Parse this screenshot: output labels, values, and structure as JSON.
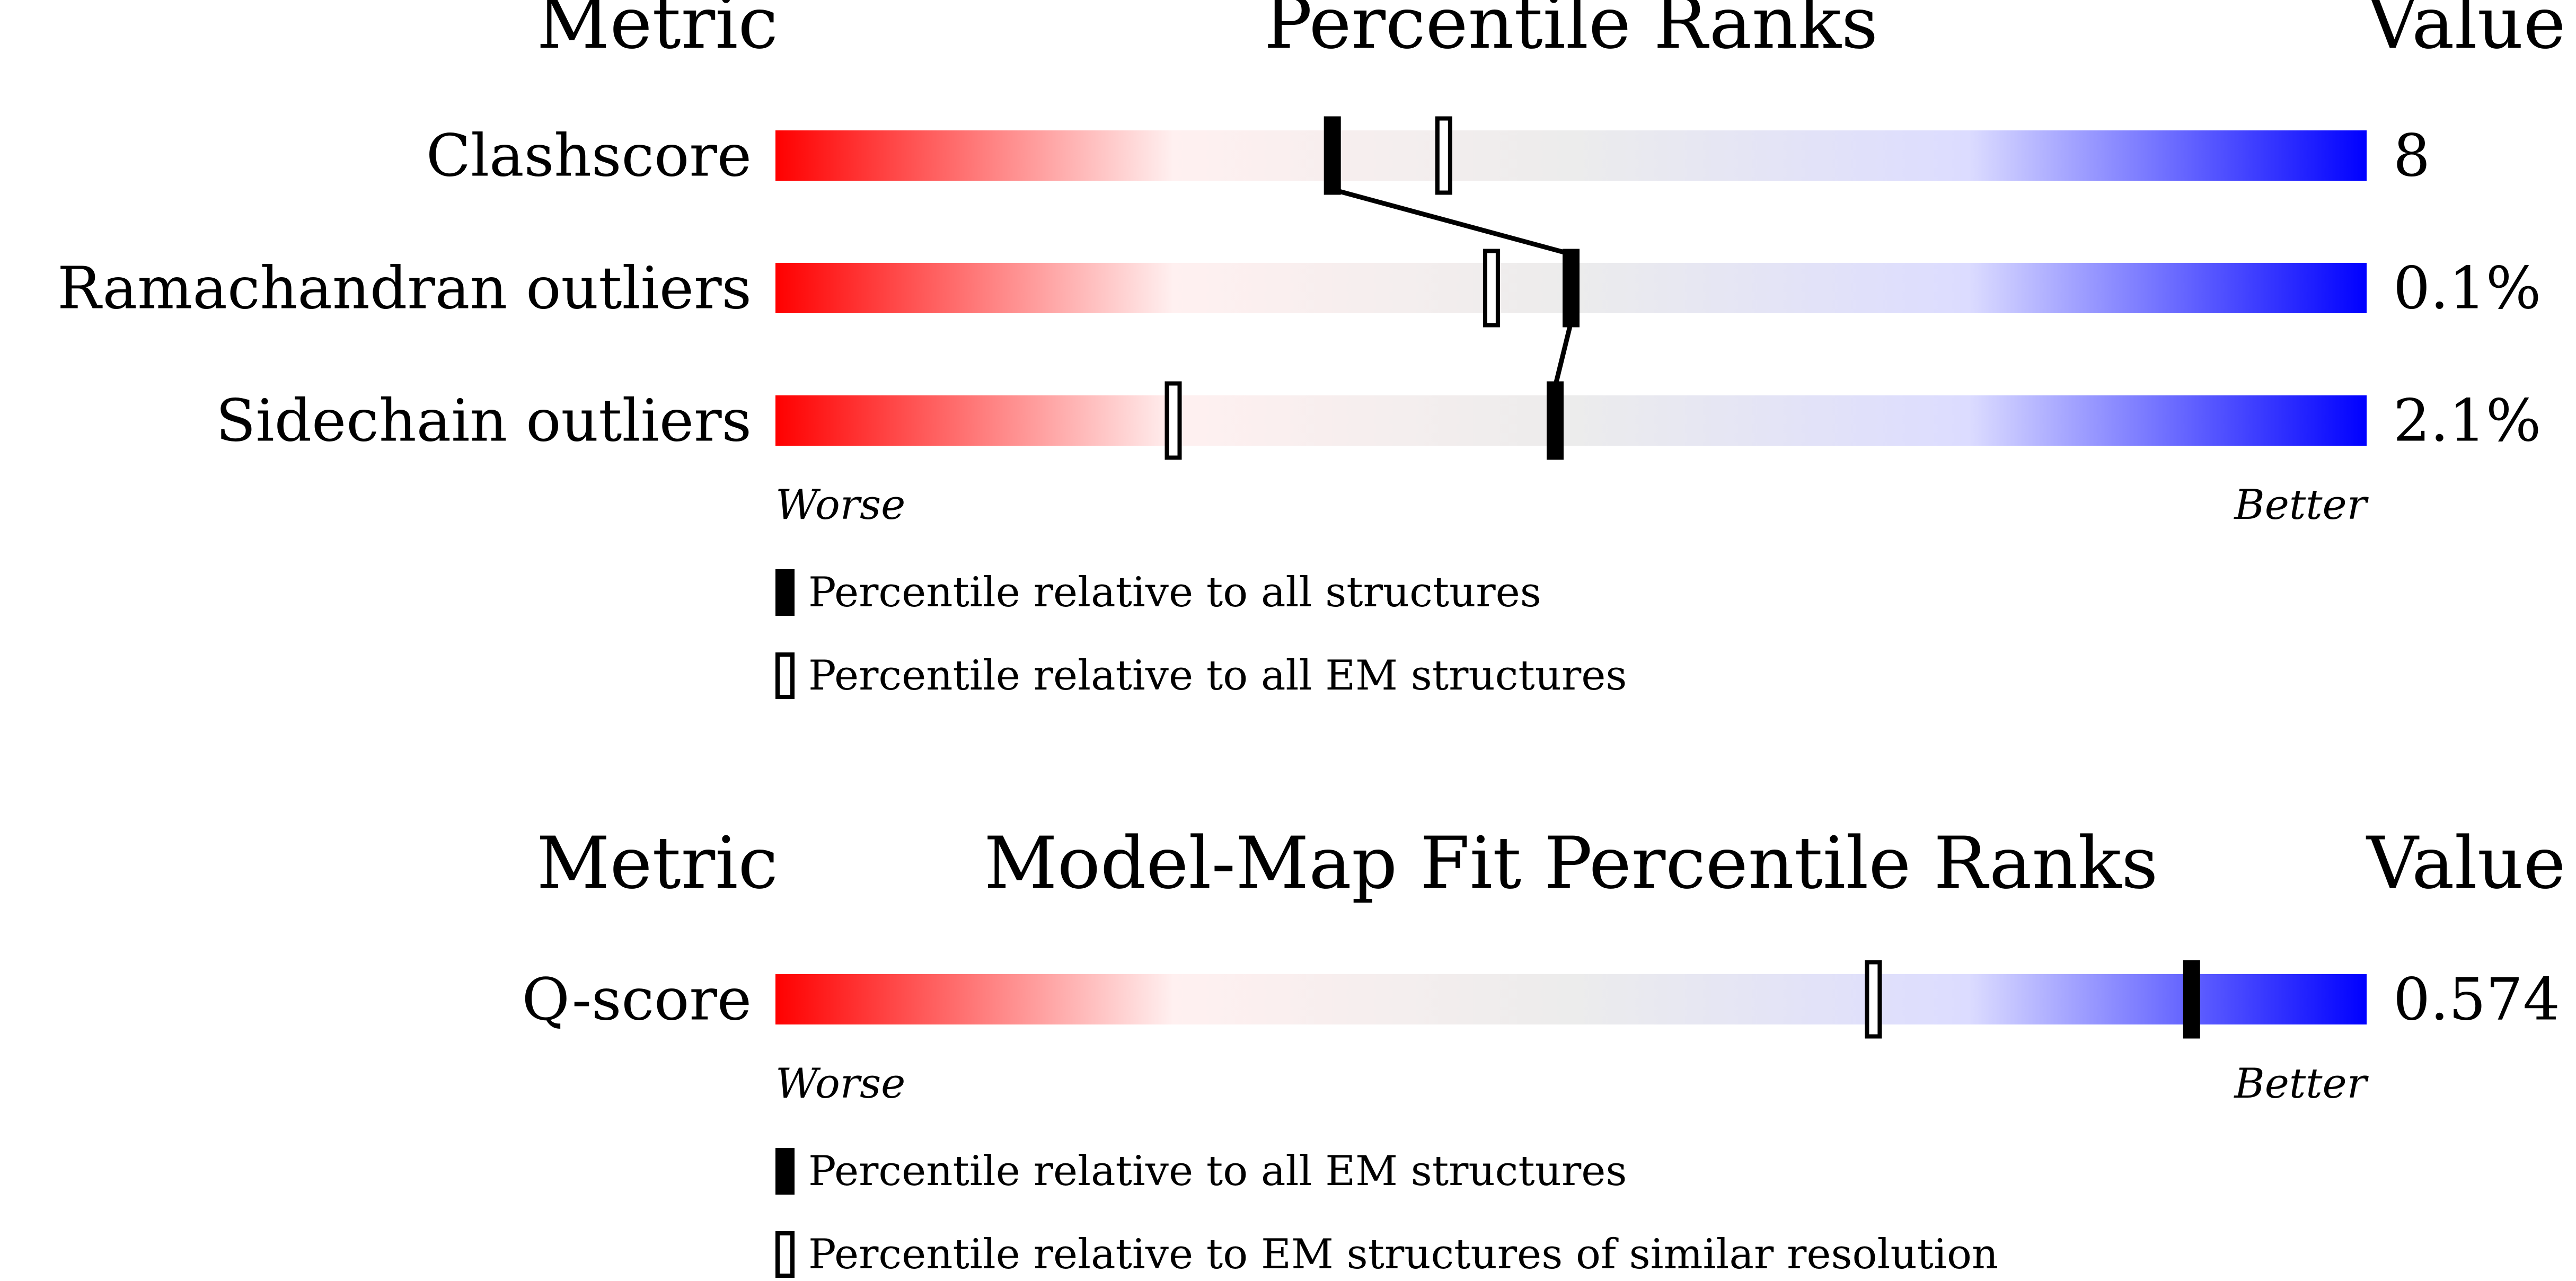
{
  "chart_data": [
    {
      "type": "percentile-bar",
      "header": {
        "metric": "Metric",
        "title": "Percentile Ranks",
        "value": "Value"
      },
      "scale": {
        "min": 0,
        "max": 100,
        "worse_label": "Worse",
        "better_label": "Better"
      },
      "gradient_colors": [
        "#ff0000",
        "#fff0f0",
        "#ececec",
        "#dcdcff",
        "#0000ff"
      ],
      "metrics": [
        {
          "name": "Clashscore",
          "value": "8",
          "percentile_all": 35,
          "percentile_em": 42
        },
        {
          "name": "Ramachandran outliers",
          "value": "0.1%",
          "percentile_all": 50,
          "percentile_em": 45
        },
        {
          "name": "Sidechain outliers",
          "value": "2.1%",
          "percentile_all": 49,
          "percentile_em": 25
        }
      ],
      "legend": [
        {
          "marker": "filled",
          "text": "Percentile relative to all structures"
        },
        {
          "marker": "open",
          "text": "Percentile relative to all EM structures"
        }
      ],
      "connect_filled_markers": true
    },
    {
      "type": "percentile-bar",
      "header": {
        "metric": "Metric",
        "title": "Model-Map Fit Percentile Ranks",
        "value": "Value"
      },
      "scale": {
        "min": 0,
        "max": 100,
        "worse_label": "Worse",
        "better_label": "Better"
      },
      "gradient_colors": [
        "#ff0000",
        "#fff0f0",
        "#ececec",
        "#dcdcff",
        "#0000ff"
      ],
      "metrics": [
        {
          "name": "Q-score",
          "value": "0.574",
          "percentile_all": 89,
          "percentile_em": 69
        }
      ],
      "legend": [
        {
          "marker": "filled",
          "text": "Percentile relative to all EM structures"
        },
        {
          "marker": "open",
          "text": "Percentile relative to EM structures of similar resolution"
        }
      ],
      "connect_filled_markers": false
    }
  ]
}
